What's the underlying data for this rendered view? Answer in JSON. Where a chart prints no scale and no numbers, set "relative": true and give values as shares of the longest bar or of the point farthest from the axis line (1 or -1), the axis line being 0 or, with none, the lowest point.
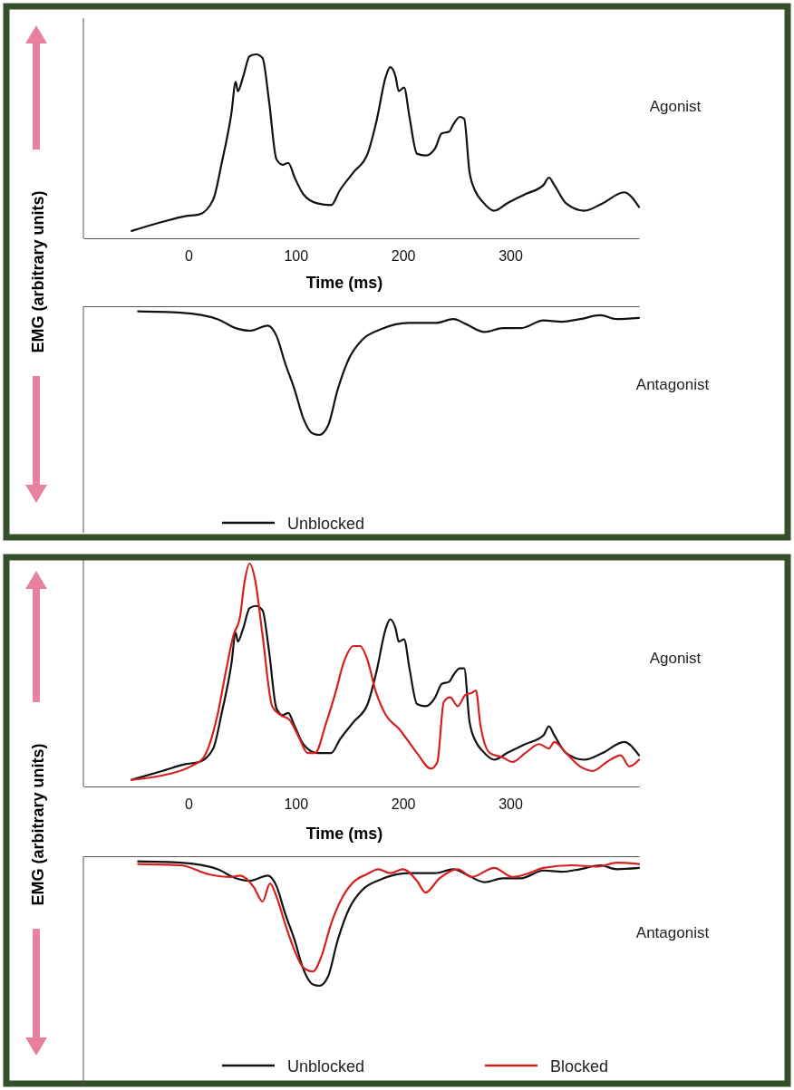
{
  "chart_data": [
    {
      "type": "line",
      "relative": true,
      "xlabel": "Time (ms)",
      "ylabel": "EMG (arbitrary units)",
      "xlim": [
        -98,
        420
      ],
      "xticks": [
        0,
        100,
        200,
        300
      ],
      "tick_labels": "x",
      "annotations": [
        "Agonist"
      ],
      "series": [
        {
          "color": "#111111",
          "x": [
            -53,
            -24,
            -3,
            10,
            23,
            31,
            40,
            44,
            46,
            51,
            57,
            63,
            69,
            75,
            82,
            88,
            93,
            99,
            107,
            120,
            133,
            141,
            154,
            167,
            175,
            184,
            188,
            193,
            196,
            201,
            206,
            213,
            221,
            230,
            236,
            243,
            247,
            253,
            257,
            262,
            268,
            274,
            285,
            297,
            314,
            331,
            336,
            341,
            352,
            369,
            386,
            406,
            420
          ],
          "values": [
            0.04,
            0.09,
            0.12,
            0.13,
            0.21,
            0.41,
            0.68,
            0.85,
            0.8,
            0.88,
            0.99,
            1.0,
            0.98,
            0.75,
            0.43,
            0.4,
            0.41,
            0.33,
            0.24,
            0.19,
            0.18,
            0.26,
            0.36,
            0.46,
            0.63,
            0.88,
            0.93,
            0.88,
            0.8,
            0.82,
            0.66,
            0.46,
            0.45,
            0.49,
            0.57,
            0.58,
            0.62,
            0.66,
            0.65,
            0.36,
            0.25,
            0.2,
            0.15,
            0.19,
            0.24,
            0.29,
            0.33,
            0.29,
            0.19,
            0.15,
            0.19,
            0.25,
            0.17
          ]
        }
      ]
    },
    {
      "type": "line",
      "relative": true,
      "xlim": [
        -98,
        420
      ],
      "tick_labels": false,
      "annotations": [
        "Antagonist"
      ],
      "legend": "bottom",
      "series": [
        {
          "name": "Unblocked",
          "color": "#111111",
          "x": [
            -47,
            -7,
            27,
            44,
            57,
            74,
            82,
            90,
            99,
            107,
            116,
            122,
            130,
            139,
            150,
            162,
            179,
            205,
            230,
            247,
            259,
            276,
            293,
            310,
            331,
            348,
            365,
            384,
            399,
            420
          ],
          "values": [
            -0.04,
            -0.05,
            -0.1,
            -0.17,
            -0.19,
            -0.15,
            -0.23,
            -0.44,
            -0.65,
            -0.87,
            -0.99,
            -1.0,
            -0.93,
            -0.65,
            -0.4,
            -0.26,
            -0.18,
            -0.13,
            -0.13,
            -0.1,
            -0.14,
            -0.2,
            -0.17,
            -0.17,
            -0.11,
            -0.12,
            -0.1,
            -0.07,
            -0.1,
            -0.09
          ]
        }
      ]
    },
    {
      "type": "line",
      "relative": true,
      "xlabel": "Time (ms)",
      "ylabel": "EMG (arbitrary units)",
      "xlim": [
        -98,
        420
      ],
      "xticks": [
        0,
        100,
        200,
        300
      ],
      "tick_labels": "x",
      "annotations": [
        "Agonist"
      ],
      "series": [
        {
          "color": "#111111",
          "x": [
            -53,
            -24,
            -3,
            10,
            23,
            31,
            40,
            44,
            46,
            51,
            57,
            63,
            69,
            75,
            82,
            88,
            93,
            99,
            107,
            120,
            133,
            141,
            154,
            167,
            175,
            184,
            188,
            193,
            196,
            201,
            206,
            213,
            221,
            230,
            236,
            243,
            247,
            253,
            257,
            262,
            268,
            274,
            285,
            297,
            314,
            331,
            336,
            341,
            352,
            369,
            386,
            406,
            420
          ],
          "values": [
            0.03,
            0.07,
            0.1,
            0.11,
            0.17,
            0.33,
            0.55,
            0.69,
            0.65,
            0.71,
            0.8,
            0.81,
            0.79,
            0.61,
            0.35,
            0.32,
            0.33,
            0.27,
            0.19,
            0.15,
            0.15,
            0.21,
            0.29,
            0.37,
            0.51,
            0.71,
            0.75,
            0.71,
            0.65,
            0.66,
            0.53,
            0.37,
            0.36,
            0.4,
            0.46,
            0.47,
            0.5,
            0.53,
            0.53,
            0.29,
            0.2,
            0.16,
            0.12,
            0.15,
            0.19,
            0.23,
            0.27,
            0.23,
            0.15,
            0.12,
            0.15,
            0.2,
            0.14
          ]
        },
        {
          "color": "#d42020",
          "x": [
            -53,
            -24,
            2,
            14,
            27,
            35,
            42,
            48,
            52,
            57,
            62,
            69,
            78,
            86,
            94,
            103,
            111,
            118,
            128,
            137,
            145,
            154,
            160,
            166,
            175,
            184,
            196,
            213,
            226,
            232,
            238,
            244,
            251,
            258,
            264,
            268,
            272,
            281,
            293,
            302,
            314,
            327,
            336,
            341,
            352,
            365,
            377,
            390,
            403,
            411,
            420
          ],
          "values": [
            0.03,
            0.05,
            0.09,
            0.13,
            0.32,
            0.52,
            0.68,
            0.76,
            0.91,
            1.0,
            0.93,
            0.68,
            0.36,
            0.32,
            0.3,
            0.22,
            0.15,
            0.15,
            0.28,
            0.42,
            0.56,
            0.63,
            0.63,
            0.58,
            0.42,
            0.32,
            0.26,
            0.15,
            0.08,
            0.11,
            0.38,
            0.4,
            0.36,
            0.41,
            0.42,
            0.43,
            0.28,
            0.15,
            0.13,
            0.11,
            0.15,
            0.19,
            0.17,
            0.2,
            0.15,
            0.09,
            0.07,
            0.11,
            0.14,
            0.09,
            0.12
          ]
        }
      ]
    },
    {
      "type": "line",
      "relative": true,
      "xlim": [
        -98,
        420
      ],
      "tick_labels": false,
      "annotations": [
        "Antagonist"
      ],
      "legend": "bottom",
      "series": [
        {
          "name": "Unblocked",
          "color": "#111111",
          "x": [
            -47,
            -7,
            27,
            44,
            57,
            74,
            82,
            90,
            99,
            107,
            116,
            122,
            130,
            139,
            150,
            162,
            179,
            205,
            230,
            247,
            259,
            276,
            293,
            310,
            331,
            348,
            365,
            384,
            399,
            420
          ],
          "values": [
            -0.04,
            -0.05,
            -0.1,
            -0.17,
            -0.19,
            -0.15,
            -0.23,
            -0.44,
            -0.65,
            -0.87,
            -0.99,
            -1.0,
            -0.93,
            -0.65,
            -0.4,
            -0.26,
            -0.18,
            -0.13,
            -0.13,
            -0.1,
            -0.14,
            -0.2,
            -0.17,
            -0.17,
            -0.11,
            -0.12,
            -0.1,
            -0.07,
            -0.1,
            -0.09
          ]
        },
        {
          "name": "Blocked",
          "color": "#d42020",
          "x": [
            -47,
            -7,
            19,
            40,
            48,
            61,
            69,
            76,
            82,
            90,
            99,
            107,
            116,
            124,
            133,
            144,
            155,
            166,
            177,
            188,
            200,
            213,
            221,
            234,
            251,
            264,
            285,
            302,
            314,
            331,
            357,
            382,
            399,
            420
          ],
          "values": [
            -0.06,
            -0.07,
            -0.14,
            -0.16,
            -0.15,
            -0.24,
            -0.35,
            -0.21,
            -0.31,
            -0.52,
            -0.73,
            -0.86,
            -0.89,
            -0.77,
            -0.52,
            -0.31,
            -0.19,
            -0.14,
            -0.1,
            -0.13,
            -0.1,
            -0.19,
            -0.28,
            -0.17,
            -0.1,
            -0.16,
            -0.09,
            -0.16,
            -0.14,
            -0.09,
            -0.07,
            -0.08,
            -0.05,
            -0.06
          ]
        }
      ]
    }
  ]
}
